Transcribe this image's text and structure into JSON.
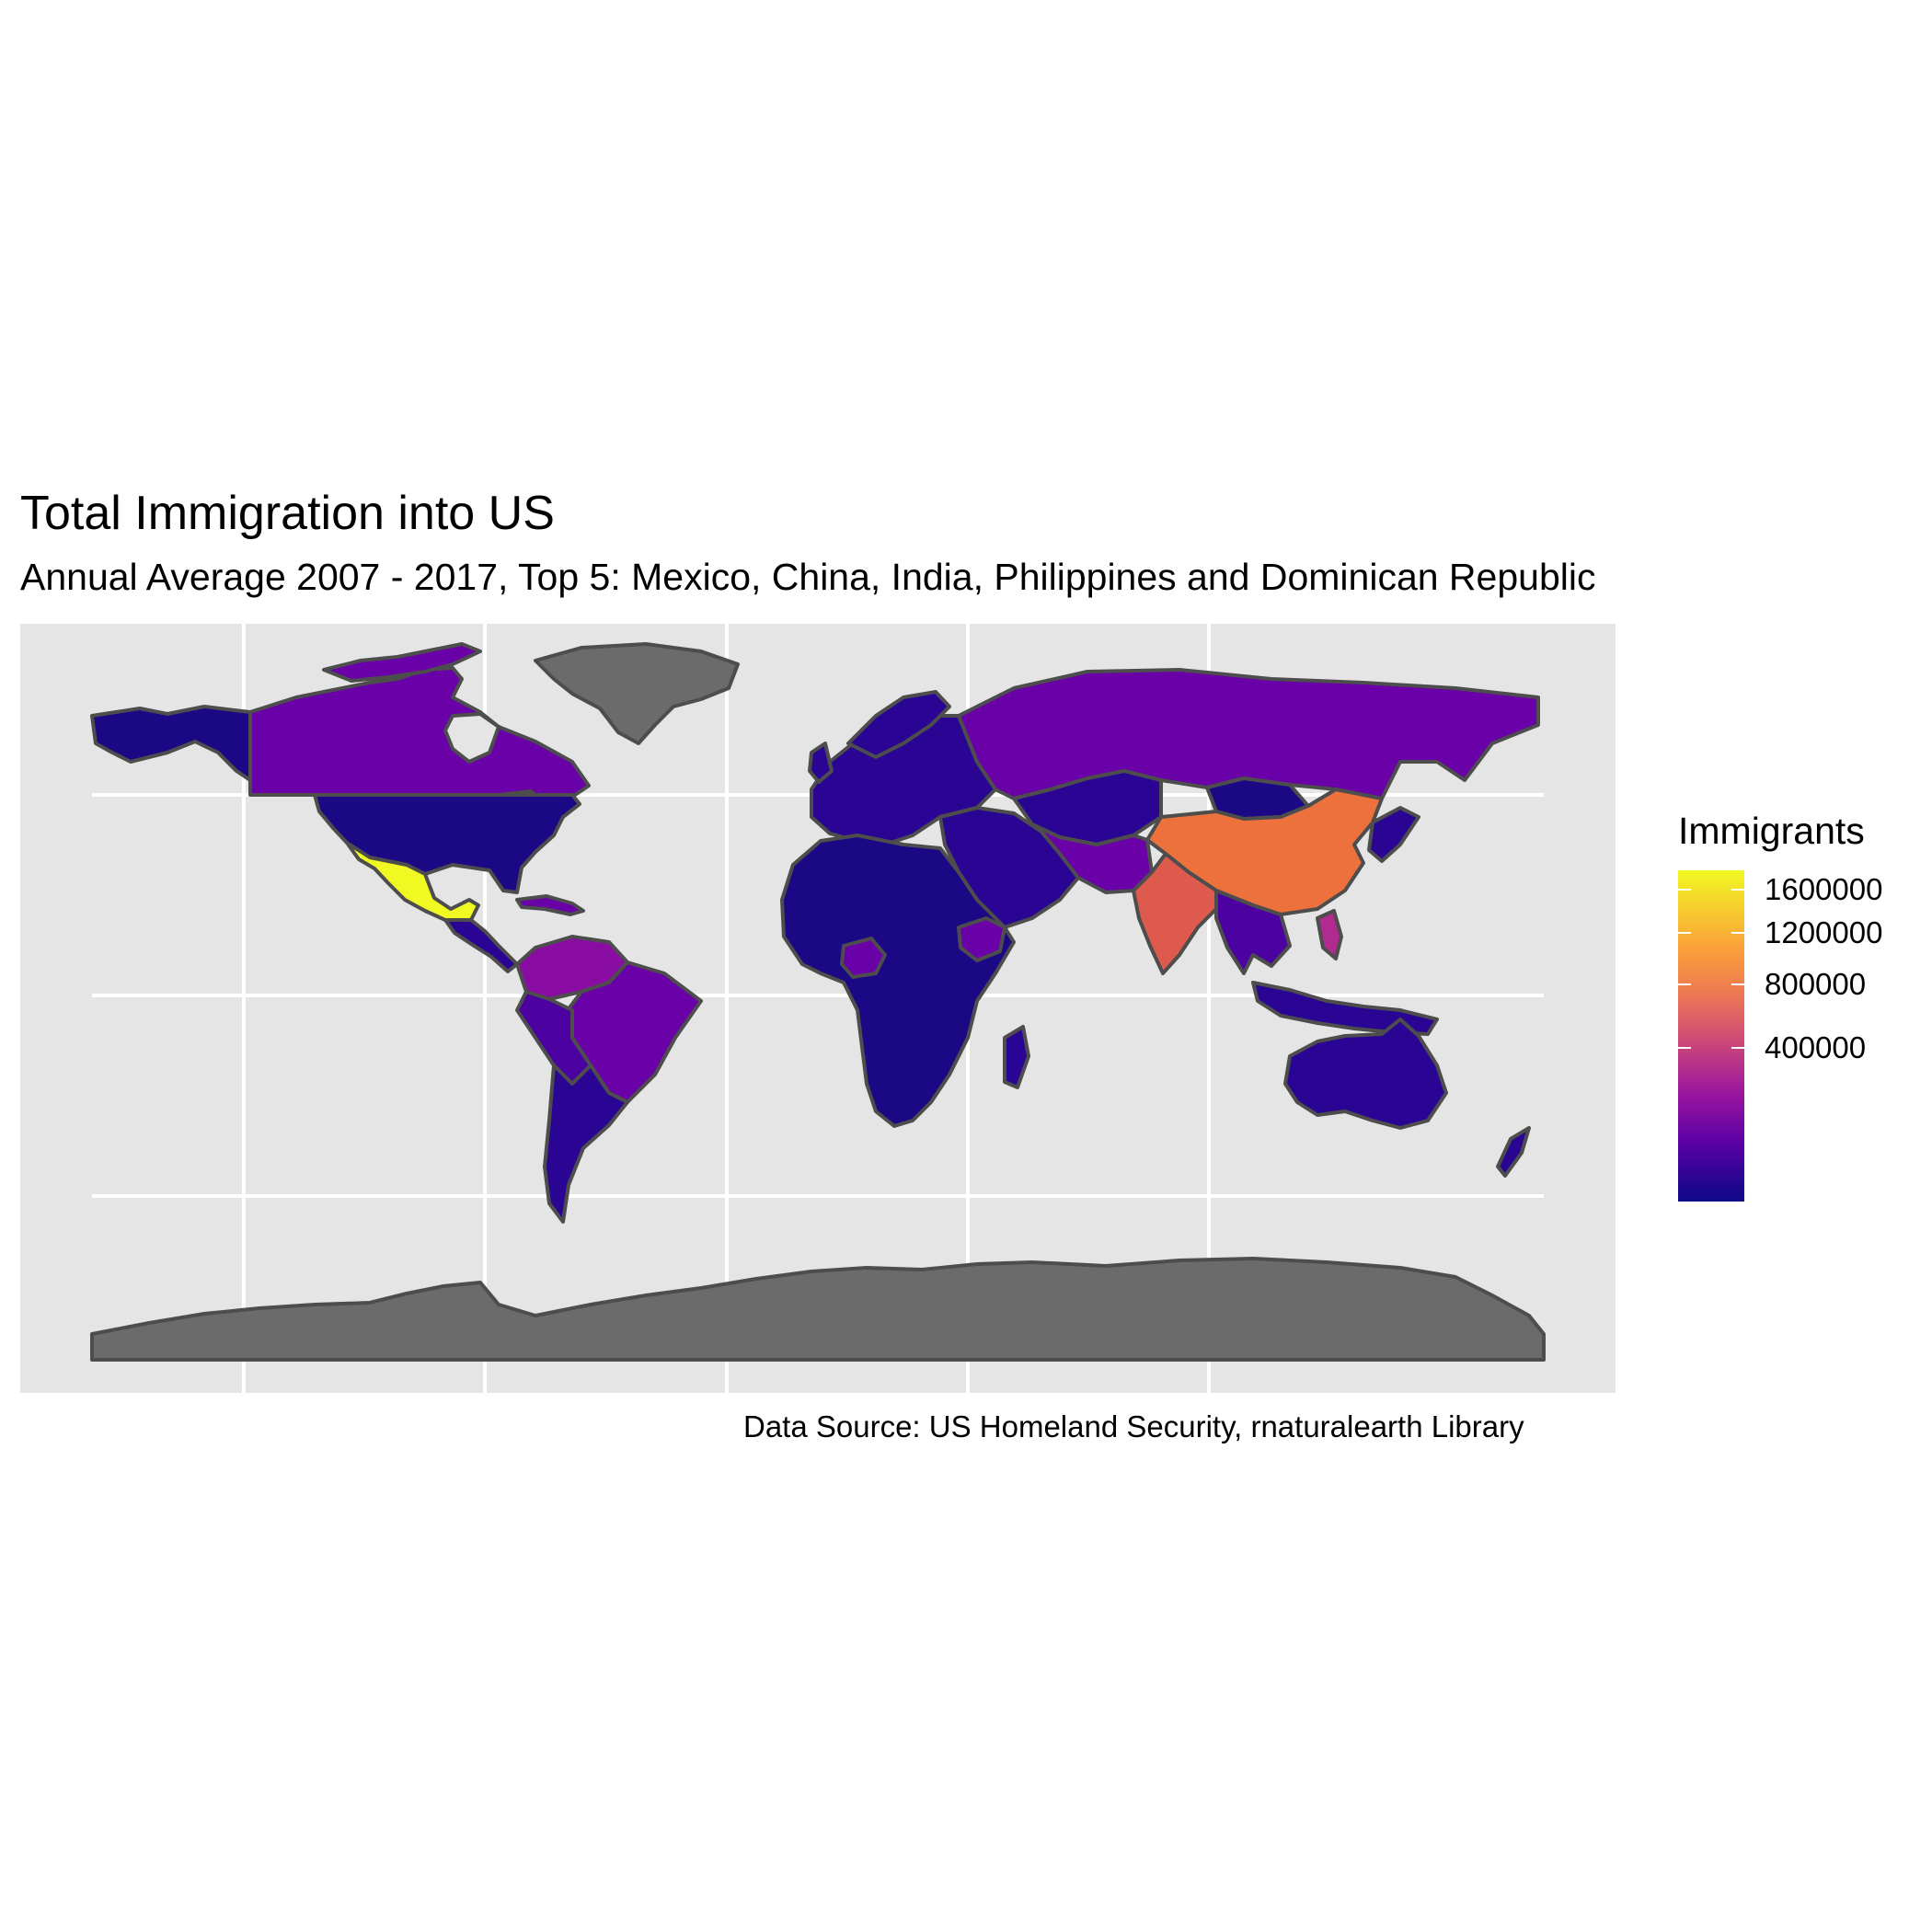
{
  "title": "Total Immigration into US",
  "subtitle": "Annual Average 2007 - 2017, Top 5: Mexico, China, India, Philippines and Dominican Republic",
  "caption": "Data Source: US Homeland Security, rnaturalearth Library",
  "legend": {
    "title": "Immigrants",
    "ticks": [
      "1600000",
      "1200000",
      "800000",
      "400000"
    ],
    "tick_values": [
      1600000,
      1200000,
      800000,
      400000
    ],
    "palette": "plasma",
    "low_color": "#0d0887",
    "high_color": "#f0f921"
  },
  "colors": {
    "panel_bg": "#e5e5e5",
    "grid": "#ffffff",
    "border": "#4d4d4d",
    "no_data": "#6b6b6b",
    "mexico": "#f0f921",
    "china": "#ec713c",
    "india": "#de5a4c",
    "canada_russia_brazil": "#6a00a8",
    "usa": "#1a0885",
    "low": "#2a0593"
  },
  "chart_data": {
    "type": "choropleth",
    "variable": "Immigrants",
    "scale": "sqrt",
    "grid": true,
    "legend_position": "right",
    "top_5": [
      "Mexico",
      "China",
      "India",
      "Philippines",
      "Dominican Republic"
    ],
    "color_levels": [
      {
        "region": "Mexico",
        "color": "#f0f921"
      },
      {
        "region": "China",
        "color": "#ec713c"
      },
      {
        "region": "India",
        "color": "#de5a4c"
      },
      {
        "region": "Canada",
        "color": "#6a00a8"
      },
      {
        "region": "Russia",
        "color": "#6a00a8"
      },
      {
        "region": "Brazil",
        "color": "#6a00a8"
      },
      {
        "region": "United States",
        "color": "#1a0885"
      },
      {
        "region": "Greenland",
        "color": "#6b6b6b"
      },
      {
        "region": "Antarctica",
        "color": "#6b6b6b"
      }
    ]
  }
}
